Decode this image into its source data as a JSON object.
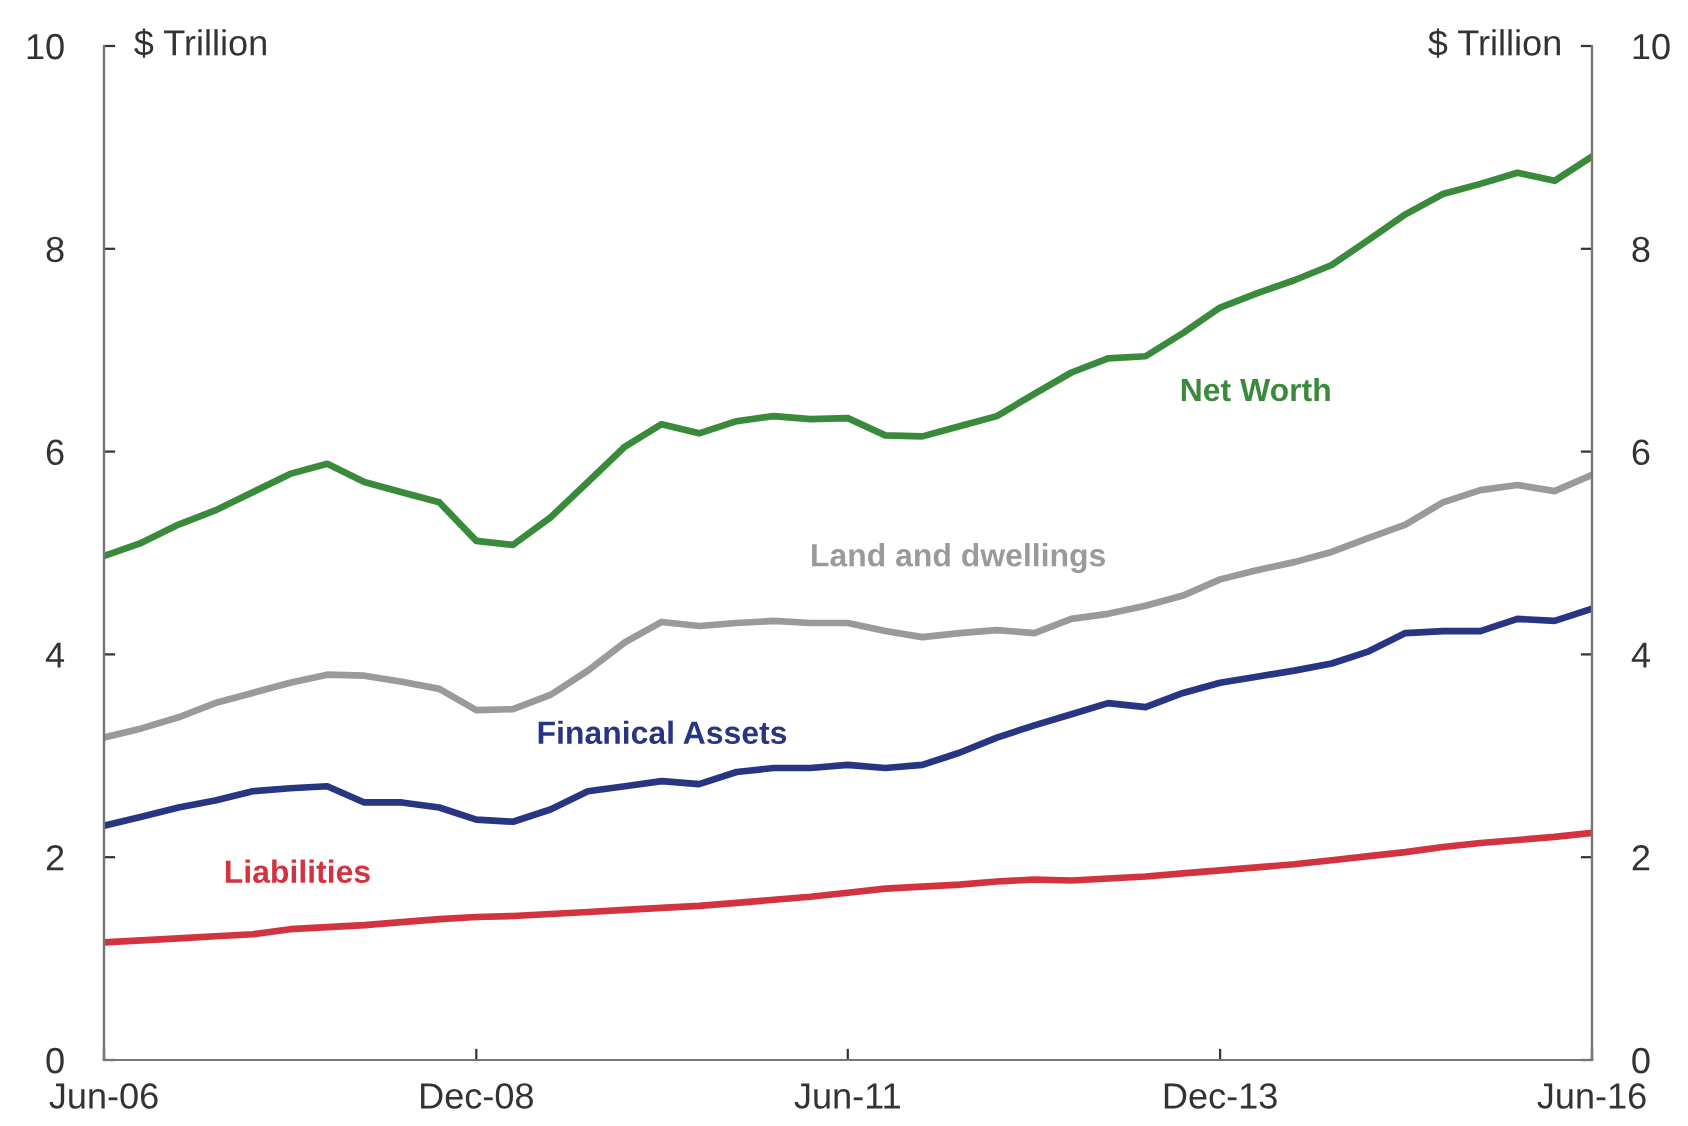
{
  "chart_data": {
    "type": "line",
    "ylabel": "$ Trillion",
    "y2label": "$ Trillion",
    "x": [
      "2006-06",
      "2006-09",
      "2006-12",
      "2007-03",
      "2007-06",
      "2007-09",
      "2007-12",
      "2008-03",
      "2008-06",
      "2008-09",
      "2008-12",
      "2009-03",
      "2009-06",
      "2009-09",
      "2009-12",
      "2010-03",
      "2010-06",
      "2010-09",
      "2010-12",
      "2011-03",
      "2011-06",
      "2011-09",
      "2011-12",
      "2012-03",
      "2012-06",
      "2012-09",
      "2012-12",
      "2013-03",
      "2013-06",
      "2013-09",
      "2013-12",
      "2014-03",
      "2014-06",
      "2014-09",
      "2014-12",
      "2015-03",
      "2015-06",
      "2015-09",
      "2015-12",
      "2016-03",
      "2016-06"
    ],
    "series": [
      {
        "name": "Net Worth",
        "color": "#3a8a3c",
        "values": [
          4.97,
          5.1,
          5.28,
          5.42,
          5.6,
          5.78,
          5.88,
          5.7,
          5.6,
          5.5,
          5.12,
          5.08,
          5.35,
          5.7,
          6.05,
          6.27,
          6.18,
          6.3,
          6.35,
          6.32,
          6.33,
          6.16,
          6.15,
          6.25,
          6.35,
          6.57,
          6.78,
          6.92,
          6.94,
          7.17,
          7.42,
          7.56,
          7.69,
          7.84,
          8.09,
          8.34,
          8.54,
          8.64,
          8.75,
          8.67,
          8.91
        ]
      },
      {
        "name": "Land and dwellings",
        "color": "#9a9a9a",
        "values": [
          3.18,
          3.27,
          3.38,
          3.52,
          3.62,
          3.72,
          3.8,
          3.79,
          3.73,
          3.66,
          3.45,
          3.46,
          3.6,
          3.84,
          4.12,
          4.32,
          4.28,
          4.31,
          4.33,
          4.31,
          4.31,
          4.23,
          4.17,
          4.21,
          4.24,
          4.21,
          4.35,
          4.4,
          4.48,
          4.58,
          4.74,
          4.83,
          4.91,
          5.01,
          5.15,
          5.28,
          5.5,
          5.62,
          5.67,
          5.61,
          5.77
        ]
      },
      {
        "name": "Finanical Assets",
        "color": "#283583",
        "values": [
          2.31,
          2.4,
          2.49,
          2.56,
          2.65,
          2.68,
          2.7,
          2.54,
          2.54,
          2.49,
          2.37,
          2.35,
          2.47,
          2.65,
          2.7,
          2.75,
          2.72,
          2.84,
          2.88,
          2.88,
          2.91,
          2.88,
          2.91,
          3.03,
          3.18,
          3.3,
          3.41,
          3.52,
          3.48,
          3.62,
          3.72,
          3.78,
          3.84,
          3.91,
          4.03,
          4.21,
          4.23,
          4.23,
          4.35,
          4.33,
          4.45
        ]
      },
      {
        "name": "Liabilities",
        "color": "#d2343f",
        "values": [
          1.16,
          1.18,
          1.2,
          1.22,
          1.24,
          1.29,
          1.31,
          1.33,
          1.36,
          1.39,
          1.41,
          1.42,
          1.44,
          1.46,
          1.48,
          1.5,
          1.52,
          1.55,
          1.58,
          1.61,
          1.65,
          1.69,
          1.71,
          1.73,
          1.76,
          1.78,
          1.77,
          1.79,
          1.81,
          1.84,
          1.87,
          1.9,
          1.93,
          1.97,
          2.01,
          2.05,
          2.1,
          2.14,
          2.17,
          2.2,
          2.24
        ]
      }
    ],
    "xlim": [
      "2006-06",
      "2016-06"
    ],
    "xticks": [
      {
        "value": "2006-06",
        "label": "Jun-06"
      },
      {
        "value": "2008-12",
        "label": "Dec-08"
      },
      {
        "value": "2011-06",
        "label": "Jun-11"
      },
      {
        "value": "2013-12",
        "label": "Dec-13"
      },
      {
        "value": "2016-06",
        "label": "Jun-16"
      }
    ],
    "ylim": [
      0,
      10
    ],
    "yticks": [
      0,
      2,
      4,
      6,
      8,
      10
    ],
    "y2lim": [
      0,
      10
    ],
    "y2ticks": [
      0,
      2,
      4,
      6,
      8,
      10
    ],
    "grid": false,
    "legend": false,
    "marker": "none",
    "line_style": "solid"
  }
}
